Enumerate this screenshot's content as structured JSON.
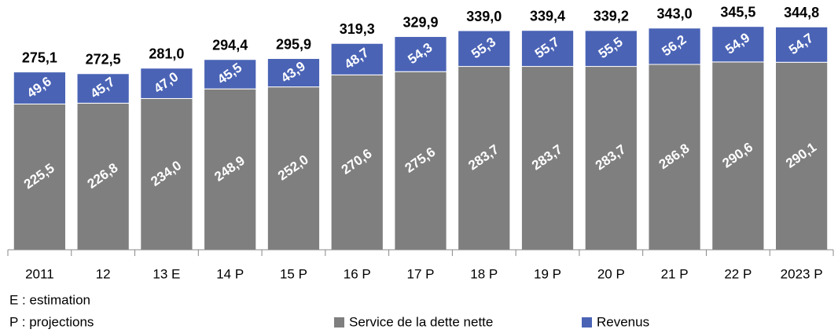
{
  "chart_data": {
    "type": "stacked_bar",
    "categories": [
      "2011",
      "12",
      "13 E",
      "14 P",
      "15 P",
      "16 P",
      "17 P",
      "18 P",
      "19 P",
      "20 P",
      "21 P",
      "22 P",
      "2023 P"
    ],
    "series": [
      {
        "name": "Service de la dette nette",
        "color": "#7f7f7f",
        "values": [
          225.5,
          226.8,
          234.0,
          248.9,
          252.0,
          270.6,
          275.6,
          283.7,
          283.7,
          283.7,
          286.8,
          290.6,
          290.1
        ],
        "value_labels": [
          "225,5",
          "226,8",
          "234,0",
          "248,9",
          "252,0",
          "270,6",
          "275,6",
          "283,7",
          "283,7",
          "283,7",
          "286,8",
          "290,6",
          "290,1"
        ]
      },
      {
        "name": "Revenus",
        "color": "#4a63b5",
        "values": [
          49.6,
          45.7,
          47.0,
          45.5,
          43.9,
          48.7,
          54.3,
          55.3,
          55.7,
          55.5,
          56.2,
          54.9,
          54.7
        ],
        "value_labels": [
          "49,6",
          "45,7",
          "47,0",
          "45,5",
          "43,9",
          "48,7",
          "54,3",
          "55,3",
          "55,7",
          "55,5",
          "56,2",
          "54,9",
          "54,7"
        ]
      }
    ],
    "totals": [
      275.1,
      272.5,
      281.0,
      294.4,
      295.9,
      319.3,
      329.9,
      339.0,
      339.4,
      339.2,
      343.0,
      345.5,
      344.8
    ],
    "total_labels": [
      "275,1",
      "272,5",
      "281,0",
      "294,4",
      "295,9",
      "319,3",
      "329,9",
      "339,0",
      "339,4",
      "339,2",
      "343,0",
      "345,5",
      "344,8"
    ],
    "annotations": [
      "E : estimation",
      "P : projections"
    ],
    "ylim": [
      0,
      350
    ],
    "legend": "bottom-right"
  }
}
